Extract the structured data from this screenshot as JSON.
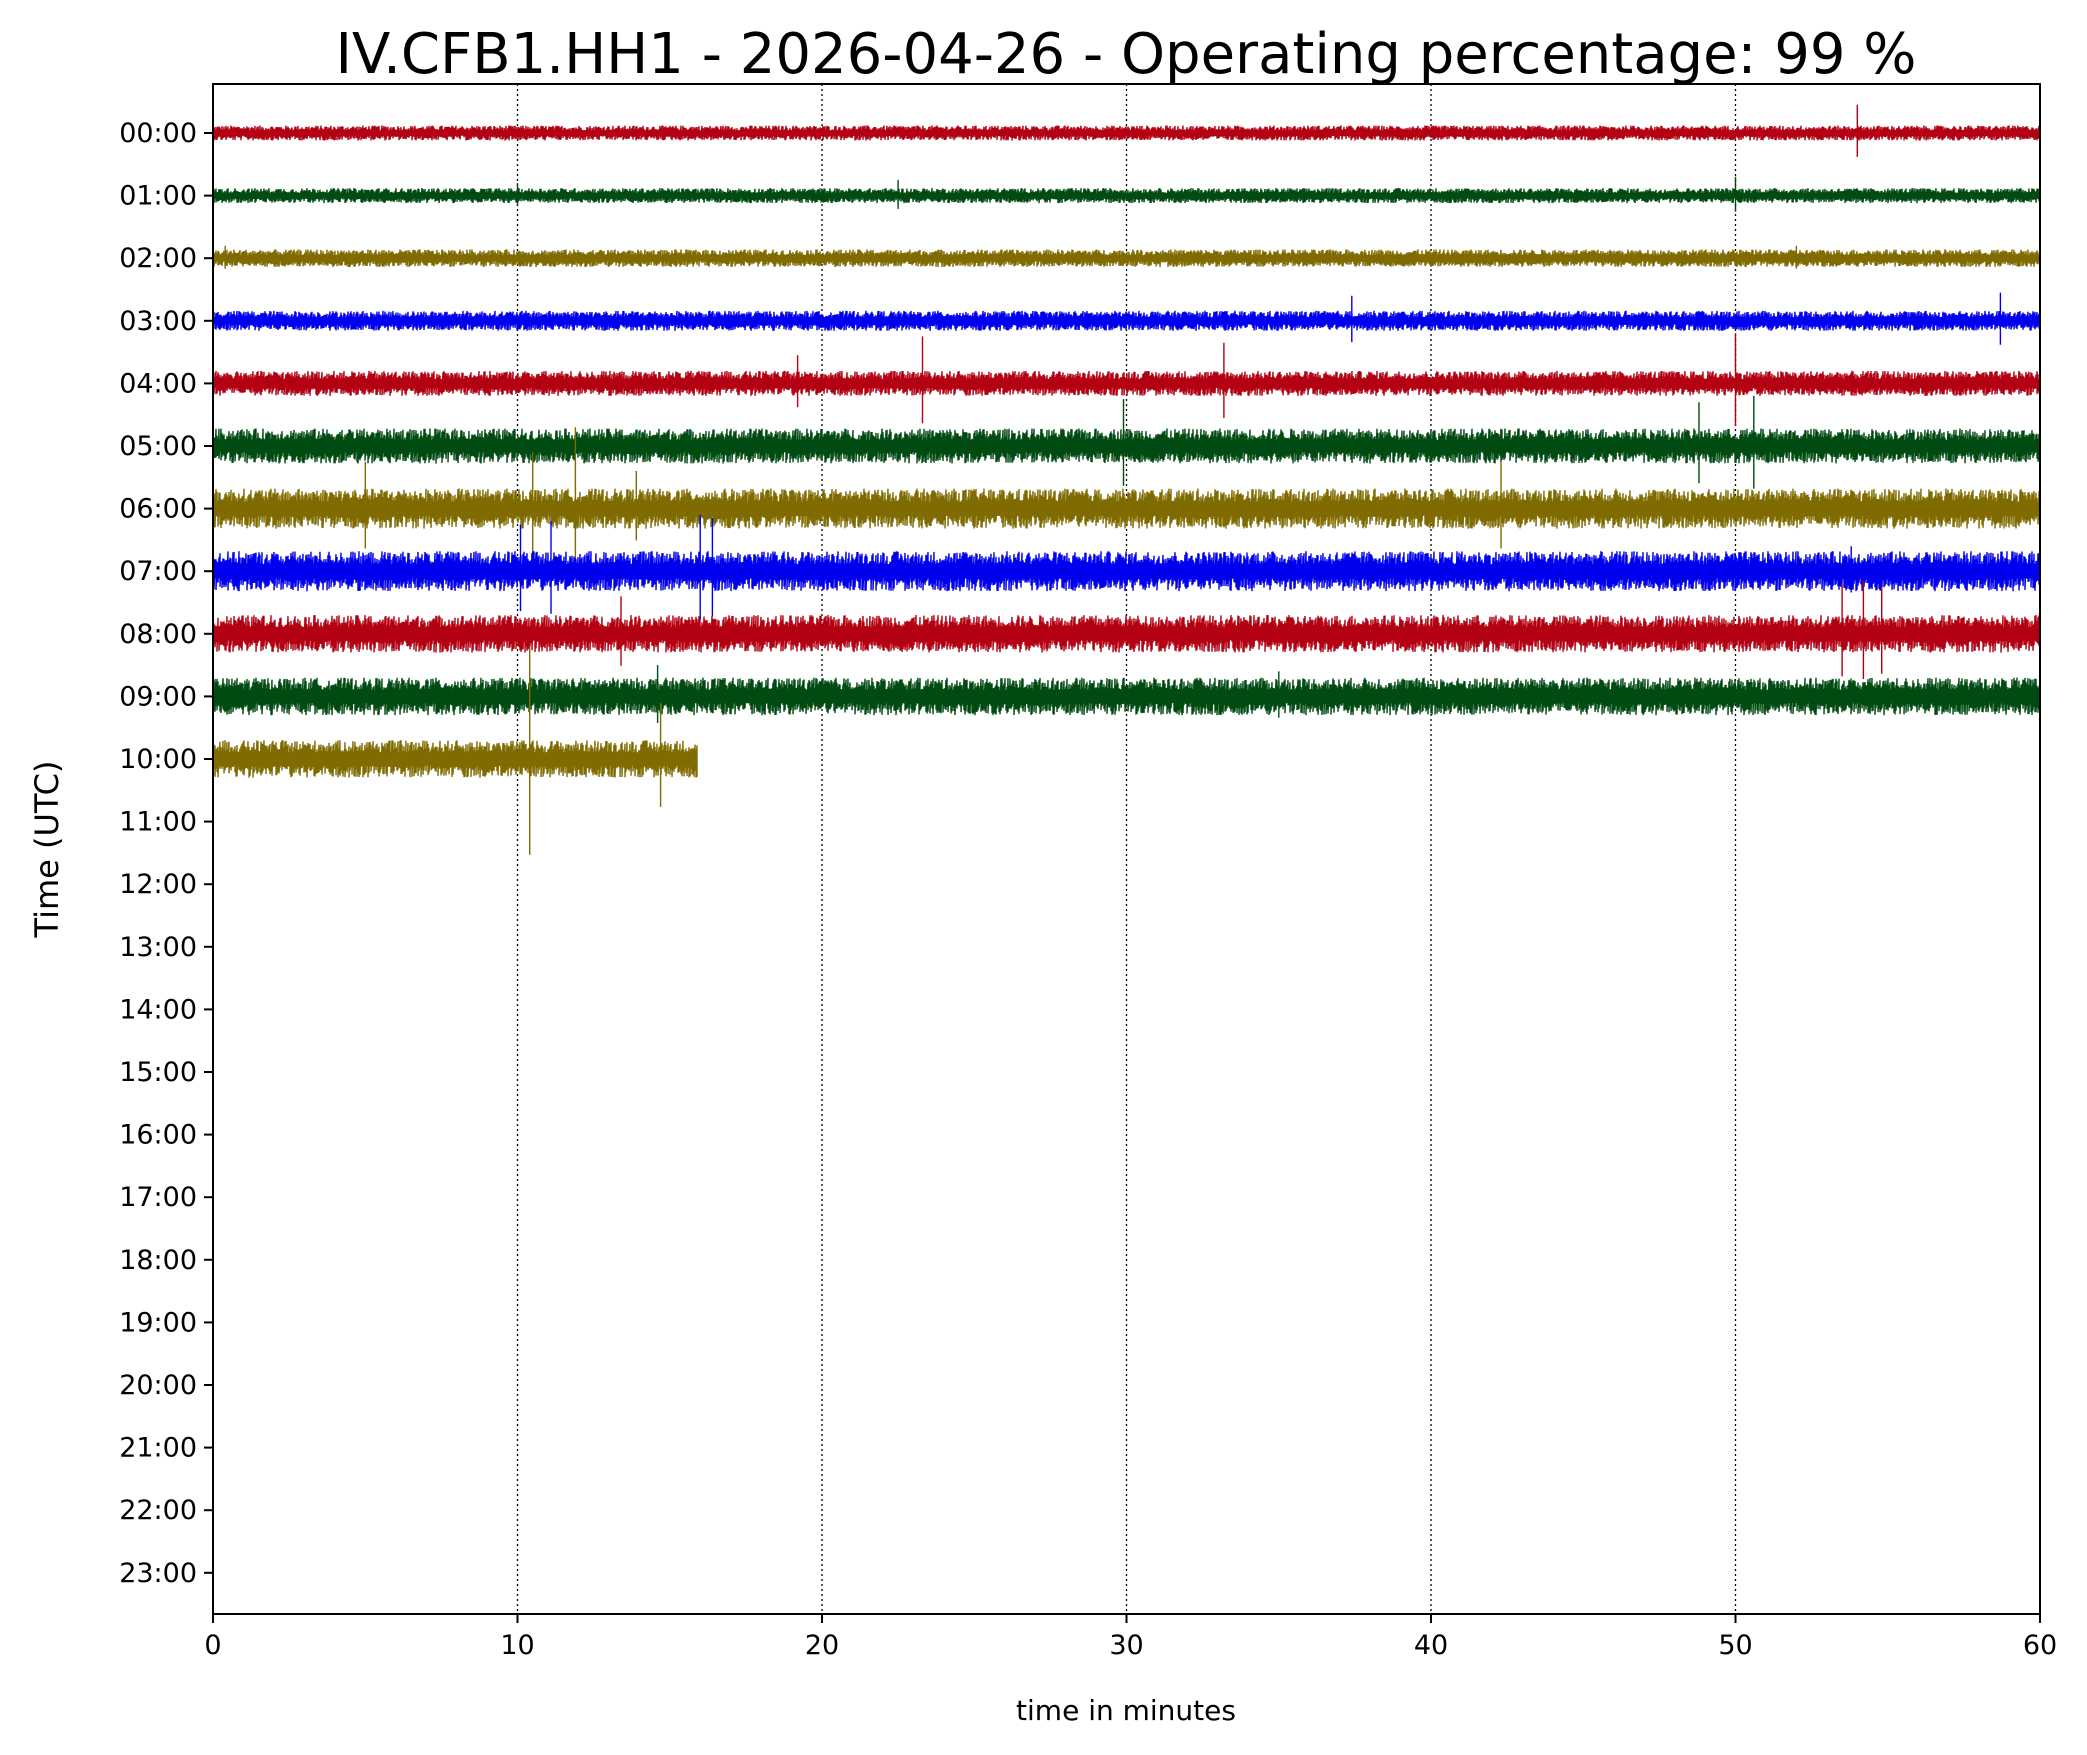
{
  "chart_data": {
    "type": "line",
    "title": "IV.CFB1.HH1 - 2026-04-26 - Operating percentage: 99 %",
    "xlabel": "time in minutes",
    "ylabel": "Time (UTC)",
    "xlim": [
      0,
      60
    ],
    "x_ticks": [
      "0",
      "10",
      "20",
      "30",
      "40",
      "50",
      "60"
    ],
    "x_gridlines": [
      10,
      20,
      30,
      40,
      50
    ],
    "grid_style": "dotted vertical lines at x ticks",
    "y_ticks": [
      "00:00",
      "01:00",
      "02:00",
      "03:00",
      "04:00",
      "05:00",
      "06:00",
      "07:00",
      "08:00",
      "09:00",
      "10:00",
      "11:00",
      "12:00",
      "13:00",
      "14:00",
      "15:00",
      "16:00",
      "17:00",
      "18:00",
      "19:00",
      "20:00",
      "21:00",
      "22:00",
      "23:00"
    ],
    "series": [
      {
        "hour": "00:00",
        "color": "#b30012",
        "minutes_recorded": [
          0,
          60
        ],
        "noise_amplitude": 0.12,
        "spikes": [
          {
            "minute": 54.0,
            "amplitude": 0.45
          }
        ]
      },
      {
        "hour": "01:00",
        "color": "#004b12",
        "minutes_recorded": [
          0,
          60
        ],
        "noise_amplitude": 0.12,
        "spikes": [
          {
            "minute": 10.0,
            "amplitude": 0.2
          },
          {
            "minute": 22.5,
            "amplitude": 0.25
          },
          {
            "minute": 50.0,
            "amplitude": 0.3
          }
        ]
      },
      {
        "hour": "02:00",
        "color": "#7f6b00",
        "minutes_recorded": [
          0,
          60
        ],
        "noise_amplitude": 0.14,
        "spikes": [
          {
            "minute": 0.4,
            "amplitude": 0.2
          },
          {
            "minute": 52.0,
            "amplitude": 0.2
          }
        ]
      },
      {
        "hour": "03:00",
        "color": "#0000ee",
        "minutes_recorded": [
          0,
          60
        ],
        "noise_amplitude": 0.16,
        "spikes": [
          {
            "minute": 37.4,
            "amplitude": 0.4
          },
          {
            "minute": 58.7,
            "amplitude": 0.45
          }
        ]
      },
      {
        "hour": "04:00",
        "color": "#b30012",
        "minutes_recorded": [
          0,
          60
        ],
        "noise_amplitude": 0.2,
        "spikes": [
          {
            "minute": 19.2,
            "amplitude": 0.45
          },
          {
            "minute": 23.3,
            "amplitude": 0.75
          },
          {
            "minute": 33.2,
            "amplitude": 0.65
          },
          {
            "minute": 50.0,
            "amplitude": 0.8
          }
        ]
      },
      {
        "hour": "05:00",
        "color": "#004b12",
        "minutes_recorded": [
          0,
          60
        ],
        "noise_amplitude": 0.28,
        "spikes": [
          {
            "minute": 29.9,
            "amplitude": 0.75
          },
          {
            "minute": 48.8,
            "amplitude": 0.7
          },
          {
            "minute": 50.6,
            "amplitude": 0.8
          }
        ]
      },
      {
        "hour": "06:00",
        "color": "#7f6b00",
        "minutes_recorded": [
          0,
          60
        ],
        "noise_amplitude": 0.32,
        "spikes": [
          {
            "minute": 5.0,
            "amplitude": 0.75
          },
          {
            "minute": 10.5,
            "amplitude": 0.9
          },
          {
            "minute": 11.9,
            "amplitude": 1.3
          },
          {
            "minute": 13.9,
            "amplitude": 0.6
          },
          {
            "minute": 42.3,
            "amplitude": 0.75
          }
        ]
      },
      {
        "hour": "07:00",
        "color": "#0000ee",
        "minutes_recorded": [
          0,
          60
        ],
        "noise_amplitude": 0.32,
        "spikes": [
          {
            "minute": 10.1,
            "amplitude": 0.75
          },
          {
            "minute": 11.1,
            "amplitude": 0.8
          },
          {
            "minute": 16.0,
            "amplitude": 0.9
          },
          {
            "minute": 16.4,
            "amplitude": 0.85
          },
          {
            "minute": 53.8,
            "amplitude": 0.4
          }
        ]
      },
      {
        "hour": "08:00",
        "color": "#b30012",
        "minutes_recorded": [
          0,
          60
        ],
        "noise_amplitude": 0.3,
        "spikes": [
          {
            "minute": 13.4,
            "amplitude": 0.6
          },
          {
            "minute": 53.5,
            "amplitude": 0.8
          },
          {
            "minute": 54.2,
            "amplitude": 0.85
          },
          {
            "minute": 54.8,
            "amplitude": 0.75
          }
        ]
      },
      {
        "hour": "09:00",
        "color": "#004b12",
        "minutes_recorded": [
          0,
          60
        ],
        "noise_amplitude": 0.3,
        "spikes": [
          {
            "minute": 14.6,
            "amplitude": 0.5
          },
          {
            "minute": 35.0,
            "amplitude": 0.4
          }
        ]
      },
      {
        "hour": "10:00",
        "color": "#7f6b00",
        "minutes_recorded": [
          0,
          15.9
        ],
        "noise_amplitude": 0.3,
        "spikes": [
          {
            "minute": 10.4,
            "amplitude": 1.8
          },
          {
            "minute": 14.7,
            "amplitude": 0.9
          }
        ]
      }
    ]
  }
}
